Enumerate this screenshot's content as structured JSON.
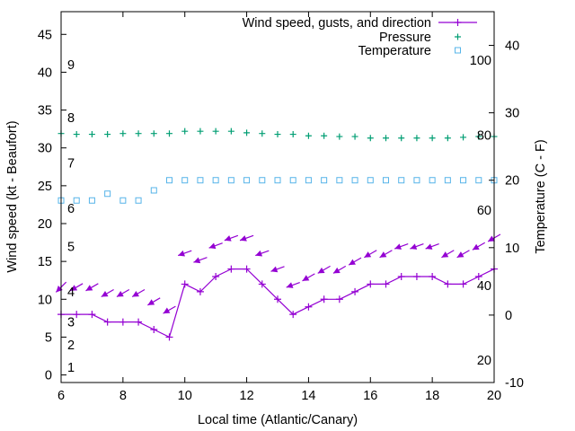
{
  "chart_data": {
    "type": "line",
    "xlabel": "Local time (Atlantic/Canary)",
    "ylabel": "Wind speed (kt - Beaufort)",
    "y2label": "Temperature (C - F)",
    "xlim": [
      6,
      20
    ],
    "ylim": [
      -1,
      48
    ],
    "y2lim": [
      -10,
      45
    ],
    "x_ticks": [
      6,
      8,
      10,
      12,
      14,
      16,
      18,
      20
    ],
    "y_ticks": [
      0,
      5,
      10,
      15,
      20,
      25,
      30,
      35,
      40,
      45
    ],
    "y2_ticks": [
      -10,
      0,
      10,
      20,
      30,
      40
    ],
    "beaufort_labels": [
      {
        "label": "1",
        "wind": 1
      },
      {
        "label": "2",
        "wind": 4
      },
      {
        "label": "3",
        "wind": 7
      },
      {
        "label": "4",
        "wind": 11
      },
      {
        "label": "5",
        "wind": 17
      },
      {
        "label": "6",
        "wind": 22
      },
      {
        "label": "7",
        "wind": 28
      },
      {
        "label": "8",
        "wind": 34
      },
      {
        "label": "9",
        "wind": 41
      }
    ],
    "fahrenheit_labels": [
      {
        "label": "20",
        "celsius": -6.7
      },
      {
        "label": "40",
        "celsius": 4.4
      },
      {
        "label": "60",
        "celsius": 15.6
      },
      {
        "label": "80",
        "celsius": 26.7
      },
      {
        "label": "100",
        "celsius": 37.8
      }
    ],
    "legend_position": "top-right",
    "grid": false,
    "x": [
      6.0,
      6.5,
      7.0,
      7.5,
      8.0,
      8.5,
      9.0,
      9.5,
      10.0,
      10.5,
      11.0,
      11.5,
      12.0,
      12.5,
      13.0,
      13.5,
      14.0,
      14.5,
      15.0,
      15.5,
      16.0,
      16.5,
      17.0,
      17.5,
      18.0,
      18.5,
      19.0,
      19.5,
      20.0
    ],
    "series": [
      {
        "name": "Wind speed, gusts, and direction",
        "color": "#9400d3",
        "axis": "left",
        "values": [
          8,
          8,
          8,
          7,
          7,
          7,
          6,
          5,
          12,
          11,
          13,
          14,
          14,
          12,
          10,
          8,
          9,
          10,
          10,
          11,
          12,
          12,
          13,
          13,
          13,
          12,
          12,
          13,
          14
        ],
        "arrow_level": [
          11.6,
          11.6,
          11.6,
          10.8,
          10.8,
          10.8,
          9.7,
          8.6,
          16.1,
          15.2,
          17.1,
          18.1,
          18.1,
          16.1,
          14.0,
          11.9,
          12.9,
          13.9,
          13.9,
          15.0,
          16.0,
          16.0,
          17.0,
          17.0,
          17.0,
          16.0,
          16.0,
          17.0,
          18.1
        ],
        "direction_deg": [
          45,
          30,
          30,
          30,
          30,
          30,
          30,
          30,
          20,
          20,
          20,
          20,
          20,
          20,
          20,
          20,
          30,
          30,
          30,
          30,
          30,
          30,
          20,
          20,
          20,
          30,
          30,
          30,
          30
        ]
      },
      {
        "name": "Pressure",
        "color": "#009e73",
        "axis": "left",
        "values": [
          31.9,
          31.8,
          31.8,
          31.8,
          31.9,
          31.9,
          31.9,
          31.9,
          32.2,
          32.2,
          32.2,
          32.2,
          32.0,
          31.9,
          31.8,
          31.8,
          31.6,
          31.6,
          31.5,
          31.5,
          31.3,
          31.3,
          31.3,
          31.3,
          31.3,
          31.3,
          31.4,
          31.5,
          31.5
        ]
      },
      {
        "name": "Temperature",
        "color": "#56b4e9",
        "axis": "right",
        "values": [
          17,
          17,
          17,
          18,
          17,
          17,
          18.5,
          20,
          20,
          20,
          20,
          20,
          20,
          20,
          20,
          20,
          20,
          20,
          20,
          20,
          20,
          20,
          20,
          20,
          20,
          20,
          20,
          20,
          20
        ]
      }
    ]
  }
}
